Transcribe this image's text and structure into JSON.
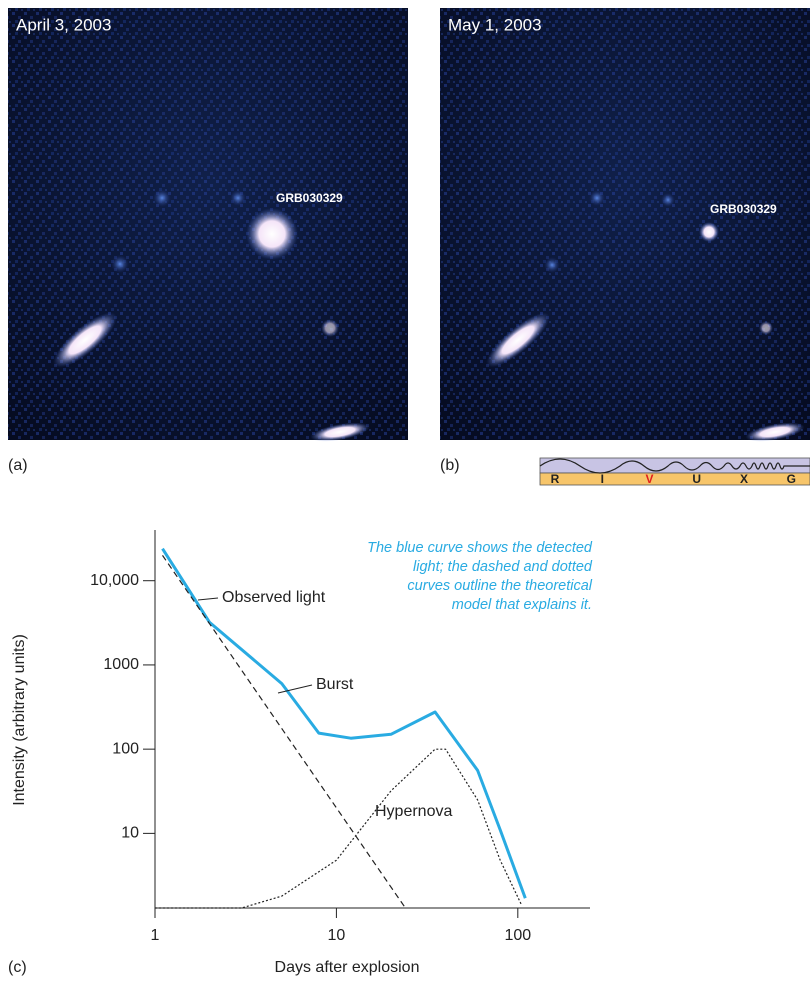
{
  "panels": {
    "a": {
      "date": "April 3, 2003",
      "object": "GRB030329",
      "label": "(a)"
    },
    "b": {
      "date": "May 1, 2003",
      "object": "GRB030329",
      "label": "(b)"
    }
  },
  "spectrum_bands": [
    "R",
    "I",
    "V",
    "U",
    "X",
    "G"
  ],
  "chart_data": {
    "type": "line",
    "panel_label": "(c)",
    "x_label": "Days after explosion",
    "y_label": "Intensity (arbitrary units)",
    "log_x": true,
    "log_y": true,
    "xlim": [
      1,
      250
    ],
    "ylim": [
      1.3,
      40000
    ],
    "xticks": [
      1,
      10,
      100
    ],
    "yticks": [
      {
        "value": 10000,
        "label": "10,000"
      },
      1000,
      100,
      10
    ],
    "note": [
      "The blue curve shows the detected",
      "light; the dashed and dotted",
      "curves outline the theoretical",
      "model that explains it."
    ],
    "series": [
      {
        "name": "Observed light",
        "color": "#29abe2",
        "style": "solid",
        "x": [
          1.1,
          2,
          5,
          8,
          12,
          20,
          35,
          60,
          80,
          110
        ],
        "values": [
          24000,
          3200,
          600,
          155,
          135,
          150,
          276,
          56,
          11,
          1.7
        ]
      },
      {
        "name": "Burst",
        "color": "#222222",
        "style": "dashed",
        "x": [
          1.1,
          24
        ],
        "values": [
          20000,
          1.3
        ]
      },
      {
        "name": "Hypernova",
        "color": "#222222",
        "style": "dotted",
        "x": [
          1,
          3,
          5,
          10,
          20,
          35,
          40,
          60,
          80,
          105
        ],
        "values": [
          1.3,
          1.3,
          1.8,
          4.8,
          32,
          100,
          100,
          25,
          4.8,
          1.4
        ]
      }
    ]
  }
}
